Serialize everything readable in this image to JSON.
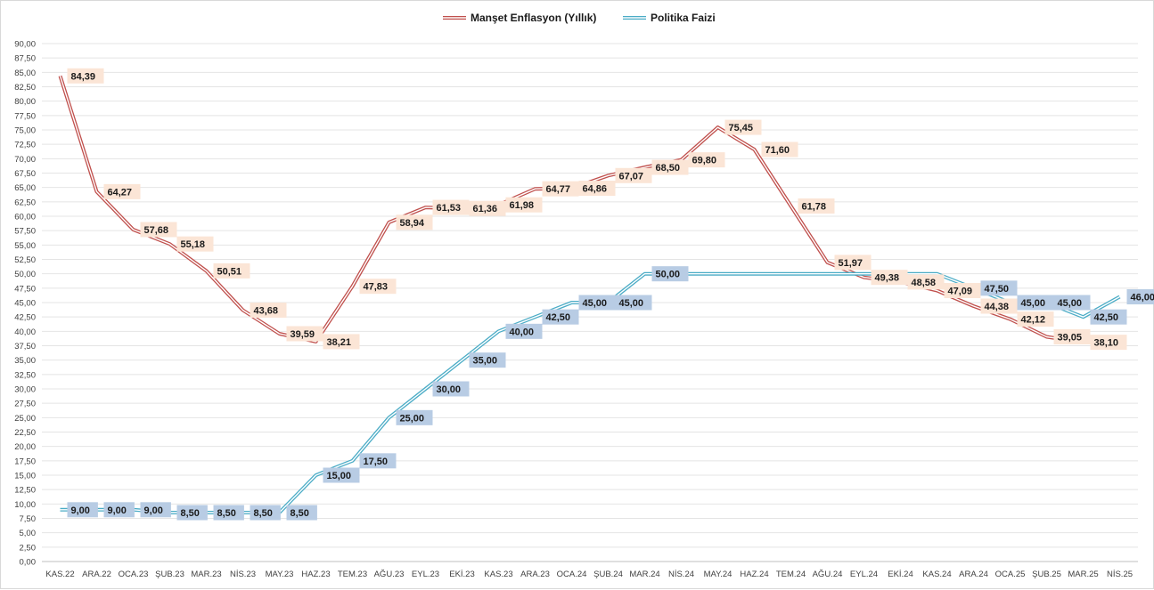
{
  "chart_data": {
    "type": "line",
    "title": "",
    "xlabel": "",
    "ylabel": "",
    "ylim": [
      0,
      90
    ],
    "ytick_step": 2.5,
    "grid": "horizontal",
    "legend": "top-center",
    "categories": [
      "KAS.22",
      "ARA.22",
      "OCA.23",
      "ŞUB.23",
      "MAR.23",
      "NİS.23",
      "MAY.23",
      "HAZ.23",
      "TEM.23",
      "AĞU.23",
      "EYL.23",
      "EKİ.23",
      "KAS.23",
      "ARA.23",
      "OCA.24",
      "ŞUB.24",
      "MAR.24",
      "NİS.24",
      "MAY.24",
      "HAZ.24",
      "TEM.24",
      "AĞU.24",
      "EYL.24",
      "EKİ.24",
      "KAS.24",
      "ARA.24",
      "OCA.25",
      "ŞUB.25",
      "MAR.25",
      "NİS.25"
    ],
    "series": [
      {
        "name": "Manşet Enflasyon (Yıllık)",
        "color": "#c0504d",
        "label_bg": "#fbe5d6",
        "values": [
          84.39,
          64.27,
          57.68,
          55.18,
          50.51,
          43.68,
          39.59,
          38.21,
          47.83,
          58.94,
          61.53,
          61.36,
          61.98,
          64.77,
          64.86,
          67.07,
          68.5,
          69.8,
          75.45,
          71.6,
          61.78,
          51.97,
          49.38,
          48.58,
          47.09,
          44.38,
          42.12,
          39.05,
          38.1,
          null
        ],
        "labels": [
          "84,39",
          "64,27",
          "57,68",
          "55,18",
          "50,51",
          "43,68",
          "39,59",
          "38,21",
          "47,83",
          "58,94",
          "61,53",
          "61,36",
          "61,98",
          "64,77",
          "64,86",
          "67,07",
          "68,50",
          "69,80",
          "75,45",
          "71,60",
          "61,78",
          "51,97",
          "49,38",
          "48,58",
          "47,09",
          "44,38",
          "42,12",
          "39,05",
          "38,10",
          ""
        ]
      },
      {
        "name": "Politika Faizi",
        "color": "#4bacc6",
        "label_bg": "#b8cce4",
        "values": [
          9.0,
          9.0,
          9.0,
          8.5,
          8.5,
          8.5,
          8.5,
          15.0,
          17.5,
          25.0,
          30.0,
          35.0,
          40.0,
          42.5,
          45.0,
          45.0,
          50.0,
          50.0,
          50.0,
          50.0,
          50.0,
          50.0,
          50.0,
          50.0,
          50.0,
          47.5,
          45.0,
          45.0,
          42.5,
          46.0
        ],
        "labels": [
          "9,00",
          "9,00",
          "9,00",
          "8,50",
          "8,50",
          "8,50",
          "8,50",
          "15,00",
          "17,50",
          "25,00",
          "30,00",
          "35,00",
          "40,00",
          "42,50",
          "45,00",
          "45,00",
          "50,00",
          "",
          "",
          "",
          "",
          "",
          "",
          "",
          "",
          "47,50",
          "45,00",
          "45,00",
          "42,50",
          "46,00"
        ]
      }
    ]
  }
}
